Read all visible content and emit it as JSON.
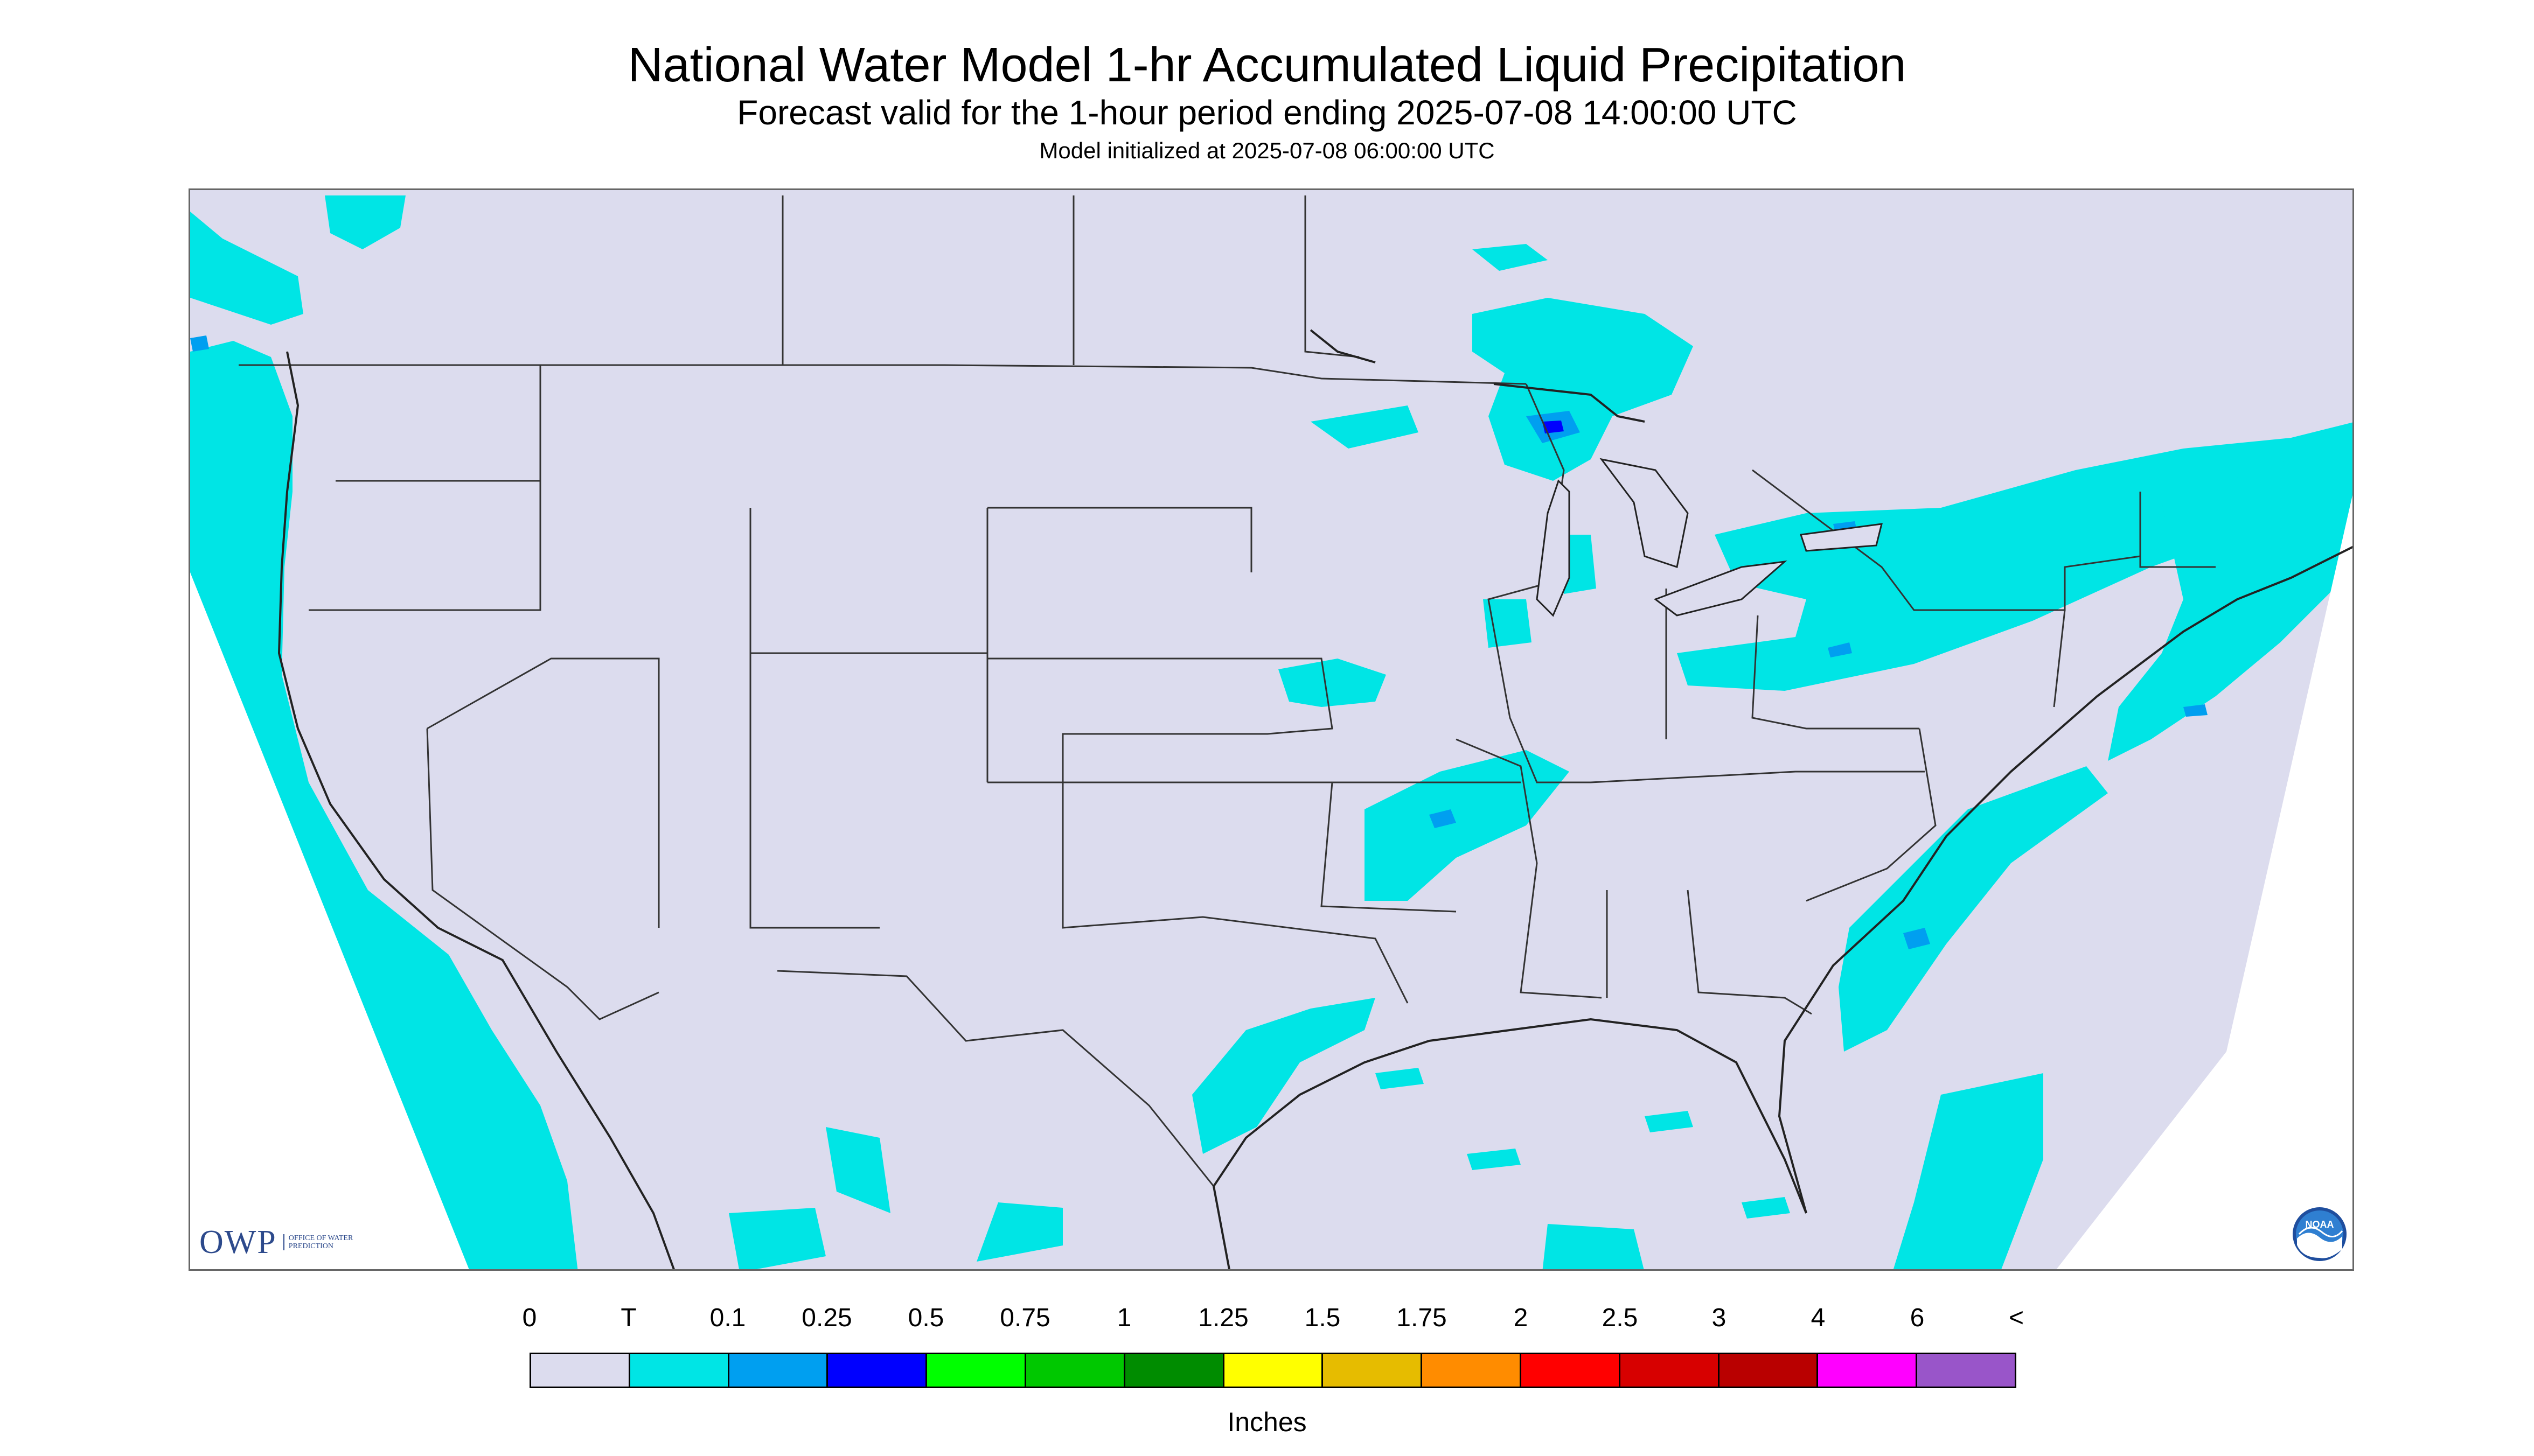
{
  "title": "National Water Model 1-hr Accumulated Liquid Precipitation",
  "subtitle": "Forecast valid for the 1-hour period ending 2025-07-08 14:00:00 UTC",
  "init_line": "Model initialized at 2025-07-08 06:00:00 UTC",
  "logos": {
    "owp_mark": "OWP",
    "owp_text": "OFFICE OF WATER PREDICTION",
    "noaa": "NOAA"
  },
  "legend": {
    "labels": [
      "0",
      "T",
      "0.1",
      "0.25",
      "0.5",
      "0.75",
      "1",
      "1.25",
      "1.5",
      "1.75",
      "2",
      "2.5",
      "3",
      "4",
      "6",
      "<"
    ],
    "colors": [
      "#dcdcee",
      "#00e5e5",
      "#009ff0",
      "#0000ff",
      "#00ff00",
      "#00c800",
      "#008c00",
      "#ffff00",
      "#e6bc00",
      "#ff8c00",
      "#ff0000",
      "#d70000",
      "#b90000",
      "#ff00ff",
      "#9955c9"
    ],
    "unit": "Inches"
  },
  "colors": {
    "land": "#dcdcee",
    "trace": "#00e5e5",
    "light": "#009ff0",
    "moderate": "#0000ff",
    "heavy": "#00ff00",
    "border": "#333333"
  }
}
